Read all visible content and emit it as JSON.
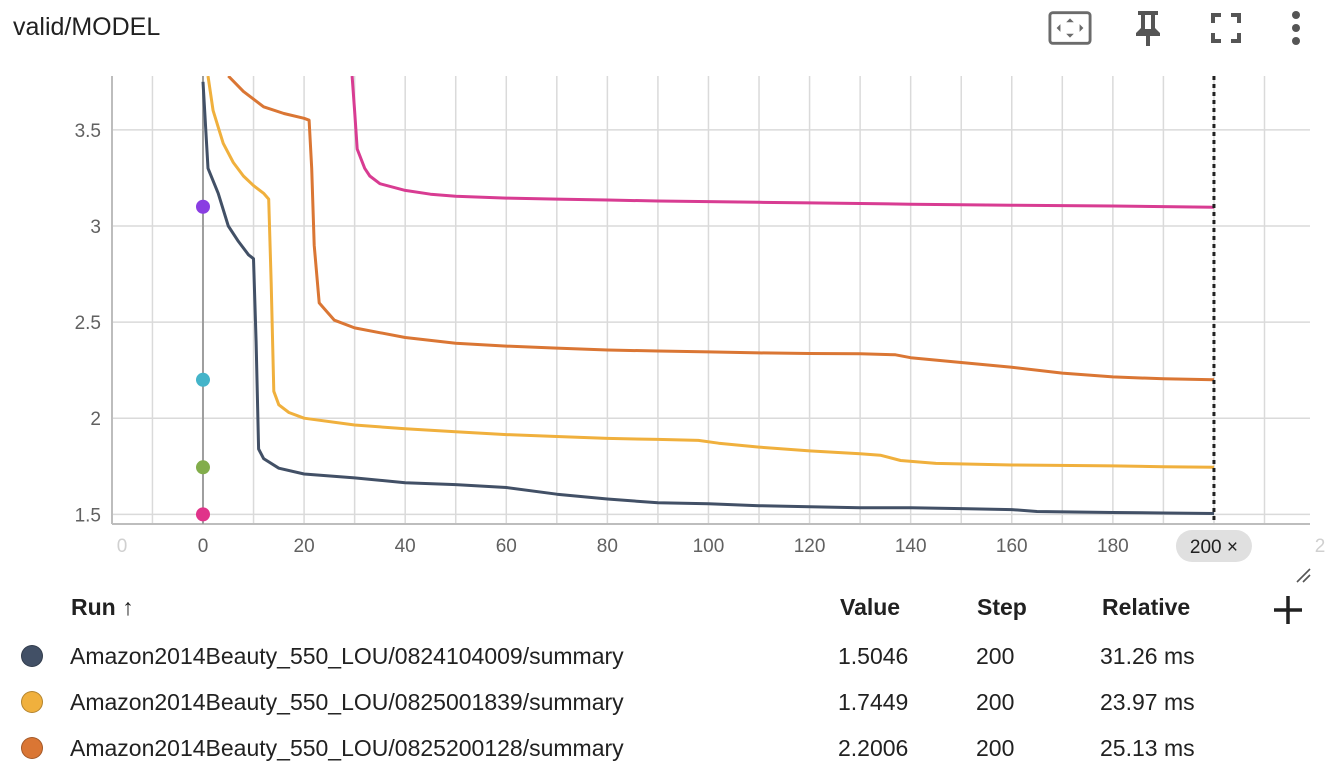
{
  "card": {
    "title": "valid/MODEL",
    "toolbar_icons": [
      "fit-domain-icon",
      "pin-icon",
      "fullscreen-icon",
      "more-vert-icon"
    ]
  },
  "chart_data": {
    "type": "line",
    "xlabel": "",
    "ylabel": "",
    "xlim": [
      -18,
      219
    ],
    "ylim": [
      1.45,
      3.78
    ],
    "x_ticks": [
      0,
      20,
      40,
      60,
      80,
      100,
      120,
      140,
      160,
      180
    ],
    "x_ticks_faded": [
      "0",
      "2"
    ],
    "y_ticks": [
      "1.5",
      "2",
      "2.5",
      "3",
      "3.5"
    ],
    "y_tick_values": [
      1.5,
      2,
      2.5,
      3,
      3.5
    ],
    "grid": true,
    "cursor_step": 200,
    "cursor_label": "200 ×",
    "series": [
      {
        "color": "#425066",
        "points": [
          [
            0,
            3.75
          ],
          [
            1,
            3.3
          ],
          [
            3,
            3.17
          ],
          [
            5,
            3.0
          ],
          [
            7,
            2.92
          ],
          [
            9,
            2.85
          ],
          [
            10,
            2.83
          ],
          [
            10.5,
            2.4
          ],
          [
            11,
            1.84
          ],
          [
            12,
            1.79
          ],
          [
            15,
            1.74
          ],
          [
            20,
            1.71
          ],
          [
            30,
            1.69
          ],
          [
            40,
            1.665
          ],
          [
            50,
            1.655
          ],
          [
            60,
            1.64
          ],
          [
            70,
            1.605
          ],
          [
            80,
            1.58
          ],
          [
            90,
            1.56
          ],
          [
            100,
            1.555
          ],
          [
            110,
            1.545
          ],
          [
            120,
            1.54
          ],
          [
            130,
            1.535
          ],
          [
            140,
            1.535
          ],
          [
            150,
            1.53
          ],
          [
            160,
            1.525
          ],
          [
            165,
            1.515
          ],
          [
            180,
            1.51
          ],
          [
            190,
            1.507
          ],
          [
            200,
            1.5046
          ]
        ]
      },
      {
        "color": "#f0b03d",
        "points": [
          [
            1,
            3.78
          ],
          [
            2,
            3.6
          ],
          [
            4,
            3.43
          ],
          [
            6,
            3.33
          ],
          [
            8,
            3.26
          ],
          [
            10,
            3.21
          ],
          [
            12,
            3.17
          ],
          [
            13,
            3.14
          ],
          [
            13.5,
            2.7
          ],
          [
            14,
            2.14
          ],
          [
            15,
            2.07
          ],
          [
            17,
            2.03
          ],
          [
            20,
            2.0
          ],
          [
            30,
            1.965
          ],
          [
            40,
            1.945
          ],
          [
            50,
            1.93
          ],
          [
            60,
            1.915
          ],
          [
            70,
            1.905
          ],
          [
            80,
            1.895
          ],
          [
            90,
            1.89
          ],
          [
            98,
            1.885
          ],
          [
            102,
            1.87
          ],
          [
            110,
            1.85
          ],
          [
            120,
            1.83
          ],
          [
            130,
            1.815
          ],
          [
            134,
            1.808
          ],
          [
            138,
            1.78
          ],
          [
            145,
            1.765
          ],
          [
            160,
            1.757
          ],
          [
            180,
            1.752
          ],
          [
            190,
            1.748
          ],
          [
            200,
            1.7449
          ]
        ]
      },
      {
        "color": "#da7634",
        "points": [
          [
            5,
            3.78
          ],
          [
            8,
            3.7
          ],
          [
            12,
            3.62
          ],
          [
            16,
            3.585
          ],
          [
            20,
            3.56
          ],
          [
            21,
            3.55
          ],
          [
            21.5,
            3.3
          ],
          [
            22,
            2.9
          ],
          [
            23,
            2.6
          ],
          [
            24,
            2.57
          ],
          [
            26,
            2.51
          ],
          [
            30,
            2.47
          ],
          [
            40,
            2.42
          ],
          [
            50,
            2.39
          ],
          [
            60,
            2.375
          ],
          [
            70,
            2.365
          ],
          [
            80,
            2.355
          ],
          [
            90,
            2.35
          ],
          [
            100,
            2.345
          ],
          [
            110,
            2.34
          ],
          [
            120,
            2.337
          ],
          [
            130,
            2.335
          ],
          [
            137,
            2.33
          ],
          [
            140,
            2.315
          ],
          [
            150,
            2.29
          ],
          [
            160,
            2.265
          ],
          [
            170,
            2.235
          ],
          [
            180,
            2.215
          ],
          [
            190,
            2.205
          ],
          [
            200,
            2.2006
          ]
        ]
      },
      {
        "color": "#d83c92",
        "points": [
          [
            29.5,
            3.78
          ],
          [
            30,
            3.6
          ],
          [
            30.5,
            3.4
          ],
          [
            32,
            3.3
          ],
          [
            33,
            3.26
          ],
          [
            35,
            3.22
          ],
          [
            40,
            3.185
          ],
          [
            45,
            3.165
          ],
          [
            50,
            3.155
          ],
          [
            60,
            3.145
          ],
          [
            70,
            3.14
          ],
          [
            80,
            3.135
          ],
          [
            90,
            3.13
          ],
          [
            100,
            3.127
          ],
          [
            110,
            3.123
          ],
          [
            120,
            3.12
          ],
          [
            130,
            3.117
          ],
          [
            140,
            3.113
          ],
          [
            150,
            3.11
          ],
          [
            160,
            3.108
          ],
          [
            170,
            3.106
          ],
          [
            180,
            3.104
          ],
          [
            190,
            3.101
          ],
          [
            200,
            3.097
          ]
        ]
      }
    ],
    "dots": [
      {
        "x": 0,
        "y": 3.1,
        "color": "#8a3ee2"
      },
      {
        "x": 0,
        "y": 2.2,
        "color": "#44b4c9"
      },
      {
        "x": 0,
        "y": 1.745,
        "color": "#82ad4b"
      },
      {
        "x": 0,
        "y": 1.5,
        "color": "#e0338a"
      }
    ]
  },
  "table": {
    "headers": {
      "run": "Run ↑",
      "value": "Value",
      "step": "Step",
      "relative": "Relative"
    },
    "add_icon": "plus-icon",
    "rows": [
      {
        "color": "#425066",
        "run": "Amazon2014Beauty_550_LOU/0824104009/summary",
        "value": "1.5046",
        "step": "200",
        "relative": "31.26 ms"
      },
      {
        "color": "#f0b03d",
        "run": "Amazon2014Beauty_550_LOU/0825001839/summary",
        "value": "1.7449",
        "step": "200",
        "relative": "23.97 ms"
      },
      {
        "color": "#da7634",
        "run": "Amazon2014Beauty_550_LOU/0825200128/summary",
        "value": "2.2006",
        "step": "200",
        "relative": "25.13 ms"
      }
    ]
  }
}
